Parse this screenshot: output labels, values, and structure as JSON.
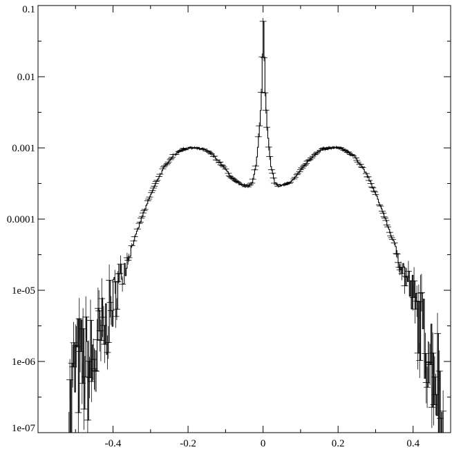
{
  "chart_data": {
    "type": "line",
    "title": "",
    "xlabel": "",
    "ylabel": "",
    "xlim": [
      -0.6,
      0.5
    ],
    "ylim": [
      1e-07,
      0.1
    ],
    "yscale": "log",
    "grid": false,
    "legend": "none",
    "line_color": "#000000",
    "x_ticks": [
      -0.4,
      -0.2,
      0,
      0.2,
      0.4
    ],
    "x_tick_labels": [
      "-0.4",
      "-0.2",
      "0",
      "0.2",
      "0.4"
    ],
    "y_ticks": [
      1e-07,
      1e-06,
      1e-05,
      0.0001,
      0.001,
      0.01,
      0.1
    ],
    "y_tick_labels": [
      "1e-07",
      "1e-06",
      "1e-05",
      "0.0001",
      "0.001",
      "0.01",
      "0.1"
    ],
    "series": [
      {
        "x": [
          -0.52,
          -0.5,
          -0.48,
          -0.46,
          -0.44,
          -0.42,
          -0.4,
          -0.38,
          -0.36,
          -0.34,
          -0.32,
          -0.3,
          -0.28,
          -0.26,
          -0.24,
          -0.22,
          -0.2,
          -0.18,
          -0.16,
          -0.14,
          -0.12,
          -0.1,
          -0.08,
          -0.06,
          -0.04,
          -0.03,
          -0.02,
          -0.015,
          -0.01,
          -0.005,
          0,
          0.005,
          0.01,
          0.015,
          0.02,
          0.03,
          0.04,
          0.06,
          0.08,
          0.1,
          0.12,
          0.14,
          0.16,
          0.18,
          0.2,
          0.22,
          0.24,
          0.26,
          0.28,
          0.3,
          0.32,
          0.34,
          0.36,
          0.38,
          0.4,
          0.42,
          0.44,
          0.46,
          0.48
        ],
        "y": [
          1e-07,
          8e-07,
          8e-07,
          8e-07,
          1.5e-06,
          3e-06,
          7e-06,
          1.5e-05,
          3e-05,
          6e-05,
          0.00012,
          0.00022,
          0.00038,
          0.00058,
          0.00078,
          0.00093,
          0.001,
          0.001,
          0.00096,
          0.00084,
          0.00066,
          0.00049,
          0.00036,
          0.0003,
          0.00029,
          0.00033,
          0.00055,
          0.001,
          0.002,
          0.006,
          0.06,
          0.006,
          0.002,
          0.001,
          0.00055,
          0.00033,
          0.00029,
          0.0003,
          0.00036,
          0.00049,
          0.00066,
          0.00084,
          0.00096,
          0.001,
          0.001,
          0.00093,
          0.00078,
          0.00058,
          0.00038,
          0.00022,
          0.00012,
          6e-05,
          3e-05,
          1.5e-05,
          7e-06,
          3e-06,
          1.5e-06,
          8e-07,
          1e-07
        ]
      }
    ]
  }
}
